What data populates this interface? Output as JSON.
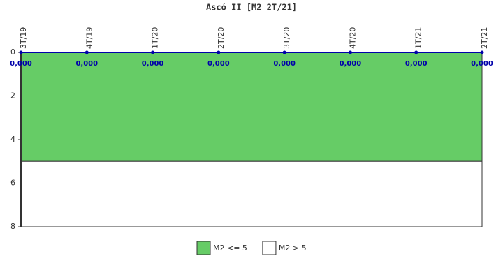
{
  "chart_data": {
    "type": "line",
    "title": "Ascó II [M2 2T/21]",
    "categories": [
      "3T/19",
      "4T/19",
      "1T/20",
      "2T/20",
      "3T/20",
      "4T/20",
      "1T/21",
      "2T/21"
    ],
    "values": [
      0,
      0,
      0,
      0,
      0,
      0,
      0,
      0
    ],
    "value_labels": [
      "0,000",
      "0,000",
      "0,000",
      "0,000",
      "0,000",
      "0,000",
      "0,000",
      "0,000"
    ],
    "color": "#0000aa",
    "ylim": [
      0,
      8
    ],
    "yticks": [
      0,
      2,
      4,
      6,
      8
    ],
    "y_inverted": true,
    "bands": [
      {
        "name": "M2 <= 5",
        "color": "#66cc66",
        "from": 0,
        "to": 5
      },
      {
        "name": "M2 > 5",
        "color": "#ffffff",
        "from": 5,
        "to": 8
      }
    ]
  }
}
